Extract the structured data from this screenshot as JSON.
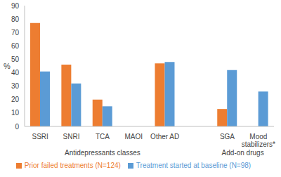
{
  "chart_data": {
    "type": "bar",
    "y_label": "%",
    "categories": [
      "SSRI",
      "SNRI",
      "TCA",
      "MAOI",
      "Other AD",
      null,
      "SGA",
      "Mood stabilizers*"
    ],
    "series": [
      {
        "name": "Prior failed treatments (N=124)",
        "color": "#ed7d31",
        "values": [
          77,
          46,
          20,
          0,
          47,
          null,
          13,
          0
        ]
      },
      {
        "name": "Treatment started at baseline (N=98)",
        "color": "#5b9bd5",
        "values": [
          41,
          32,
          15,
          0,
          48,
          null,
          42,
          26
        ]
      }
    ],
    "annotations": [
      "Antidepressants classes",
      "Add-on drugs"
    ],
    "ylim": [
      0,
      90
    ],
    "yticks": [
      0,
      10,
      20,
      30,
      40,
      50,
      60,
      70,
      80,
      90
    ],
    "grid": false,
    "legend": "bottom"
  }
}
